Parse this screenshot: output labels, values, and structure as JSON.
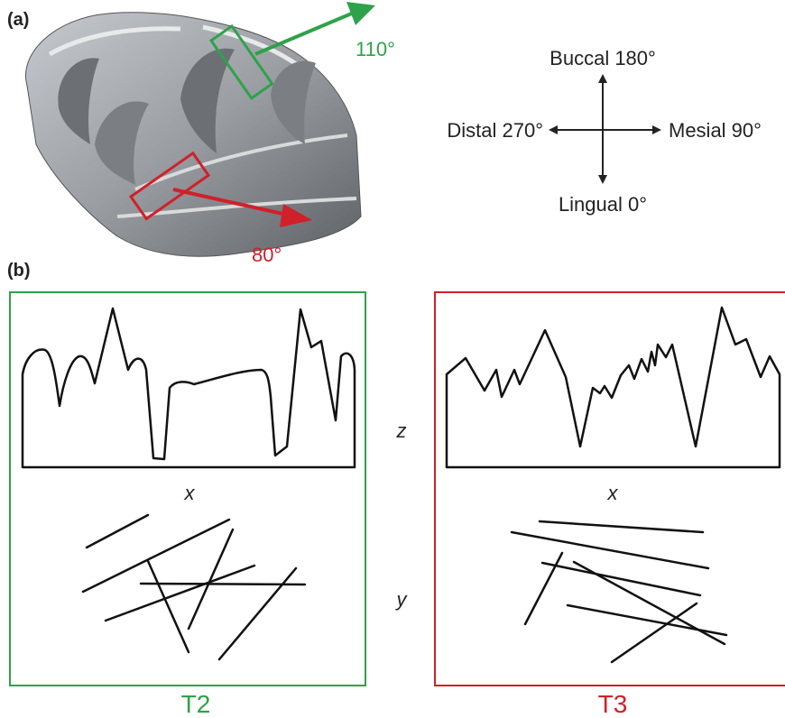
{
  "panel_a": {
    "label": "(a)",
    "green_angle": "110°",
    "red_angle": "80°",
    "colors": {
      "green": "#2ea24a",
      "red": "#d0202a",
      "tooth_dark": "#6f7276",
      "tooth_light": "#b9bcc0",
      "enamel": "#e8e9ea"
    },
    "compass": {
      "buccal": "Buccal 180°",
      "lingual": "Lingual 0°",
      "distal": "Distal 270°",
      "mesial": "Mesial 90°"
    }
  },
  "panel_b": {
    "label": "(b)",
    "left_box_title": "T2",
    "right_box_title": "T3",
    "left_x_label": "x",
    "right_x_label": "x",
    "z_label": "z",
    "y_label": "y"
  }
}
